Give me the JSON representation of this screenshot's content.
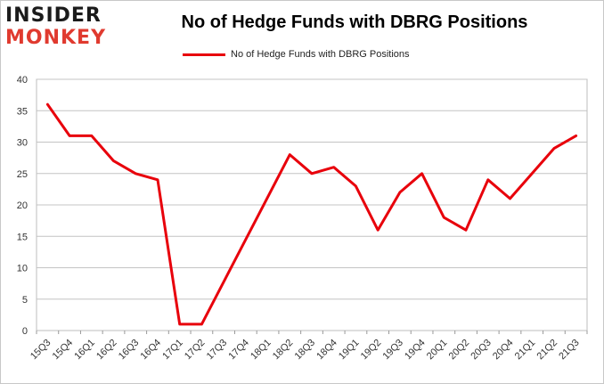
{
  "logo": {
    "line1": "INSIDER",
    "line2": "MONKEY"
  },
  "chart_data": {
    "type": "line",
    "title": "No of Hedge Funds with DBRG Positions",
    "xlabel": "",
    "ylabel": "",
    "categories": [
      "15Q3",
      "15Q4",
      "16Q1",
      "16Q2",
      "16Q3",
      "16Q4",
      "17Q1",
      "17Q2",
      "17Q3",
      "17Q4",
      "18Q1",
      "18Q2",
      "18Q3",
      "18Q4",
      "19Q1",
      "19Q2",
      "19Q3",
      "19Q4",
      "20Q1",
      "20Q2",
      "20Q3",
      "20Q4",
      "21Q1",
      "21Q2",
      "21Q3"
    ],
    "series": [
      {
        "name": "No of Hedge Funds with DBRG Positions",
        "color": "#e8000b",
        "values": [
          36,
          31,
          31,
          27,
          25,
          24,
          1,
          1,
          null,
          null,
          null,
          28,
          25,
          26,
          23,
          16,
          22,
          25,
          18,
          16,
          24,
          21,
          25,
          29,
          31
        ]
      }
    ],
    "ylim": [
      0,
      40
    ],
    "yticks": [
      0,
      5,
      10,
      15,
      20,
      25,
      30,
      35,
      40
    ],
    "grid": true,
    "legend_position": "top"
  }
}
